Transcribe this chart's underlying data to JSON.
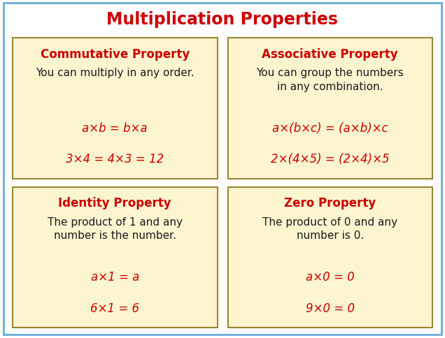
{
  "title": "Multiplication Properties",
  "title_color": "#cc0000",
  "title_fontsize": 17,
  "background_color": "#ffffff",
  "outer_border_color": "#6aadd5",
  "box_bg_color": "#fdf5d0",
  "box_border_color": "#9b8530",
  "header_color": "#cc0000",
  "header_fontsize": 12,
  "body_color": "#1a1a1a",
  "body_fontsize": 11,
  "formula_color": "#cc0000",
  "formula_fontsize": 12,
  "boxes": [
    {
      "title": "Commutative Property",
      "body": "You can multiply in any order.",
      "formula1": "a×b = b×a",
      "formula2": "3×4 = 4×3 = 12",
      "col": 0,
      "row": 1
    },
    {
      "title": "Associative Property",
      "body": "You can group the numbers\nin any combination.",
      "formula1": "a×(b×c) = (a×b)×c",
      "formula2": "2×(4×5) = (2×4)×5",
      "col": 1,
      "row": 1
    },
    {
      "title": "Identity Property",
      "body": "The product of 1 and any\nnumber is the number.",
      "formula1": "a×1 = a",
      "formula2": "6×1 = 6",
      "col": 0,
      "row": 0
    },
    {
      "title": "Zero Property",
      "body": "The product of 0 and any\nnumber is 0.",
      "formula1": "a×0 = 0",
      "formula2": "9×0 = 0",
      "col": 1,
      "row": 0
    }
  ]
}
